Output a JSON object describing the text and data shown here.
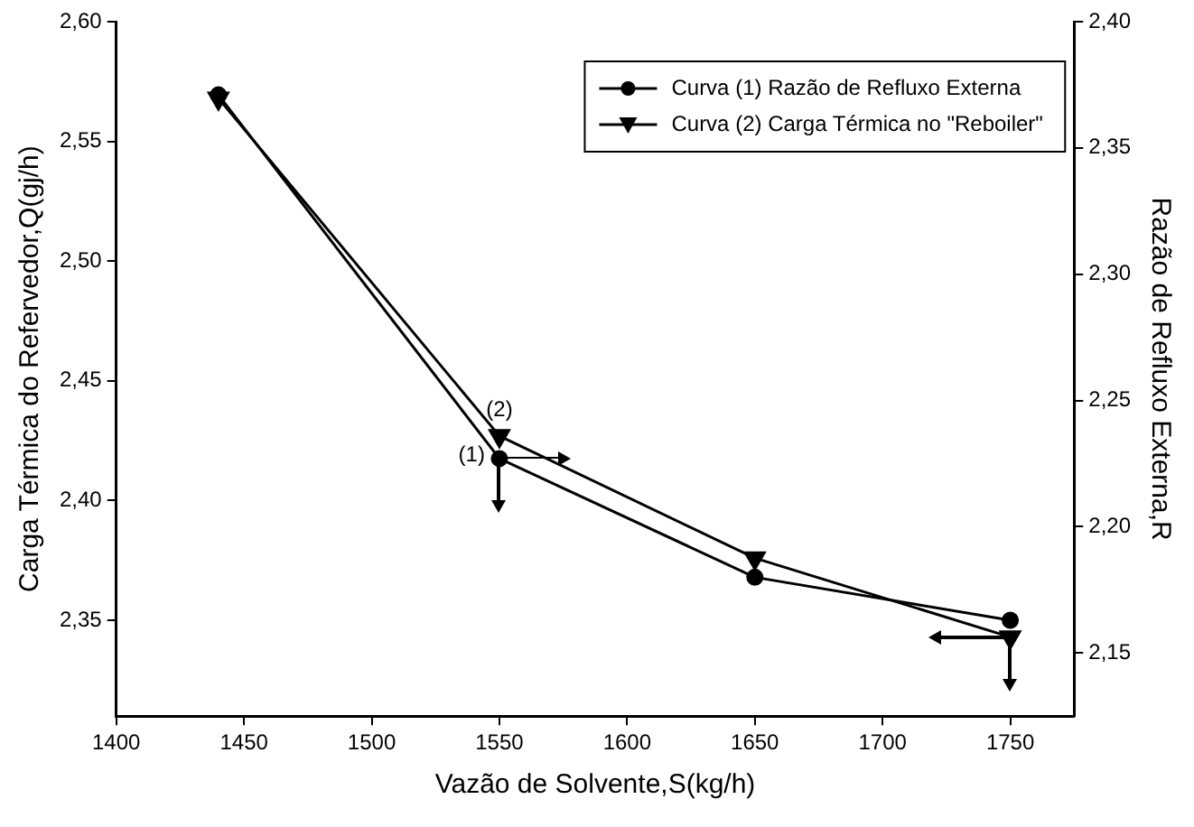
{
  "chart_data": {
    "type": "line",
    "xlabel": "Vazão de Solvente,S(kg/h)",
    "ylabel": "Carga Térmica do Refervedor,Q(gj/h)",
    "y2label": "Razão de Refluxo Externa,R",
    "x": [
      1440,
      1550,
      1650,
      1750
    ],
    "series": [
      {
        "name": "Curva (1) Razão de Refluxo Externa",
        "color": "#000000",
        "values": [
          2.371,
          2.227,
          2.18,
          2.163
        ],
        "axis": "y2",
        "marker": "circle"
      },
      {
        "name": "Curva (2) Carga Térmica no \"Reboiler\"",
        "color": "#000000",
        "values": [
          2.568,
          2.427,
          2.376,
          2.343
        ],
        "marker": "triangle"
      }
    ],
    "xlim": [
      1400,
      1775
    ],
    "xticks": [
      1400,
      1450,
      1500,
      1550,
      1600,
      1650,
      1700,
      1750
    ],
    "ylim": [
      2.31,
      2.6
    ],
    "yticks": [
      {
        "value": 2.35,
        "label": "2,35"
      },
      {
        "value": 2.4,
        "label": "2,40"
      },
      {
        "value": 2.45,
        "label": "2,45"
      },
      {
        "value": 2.5,
        "label": "2,50"
      },
      {
        "value": 2.55,
        "label": "2,55"
      },
      {
        "value": 2.6,
        "label": "2,60"
      }
    ],
    "y2lim": [
      2.125,
      2.4
    ],
    "y2ticks": [
      {
        "value": 2.15,
        "label": "2,15"
      },
      {
        "value": 2.2,
        "label": "2,20"
      },
      {
        "value": 2.25,
        "label": "2,25"
      },
      {
        "value": 2.3,
        "label": "2,30"
      },
      {
        "value": 2.35,
        "label": "2,35"
      },
      {
        "value": 2.4,
        "label": "2,40"
      }
    ],
    "annotations": [
      {
        "text": "(1)",
        "x": 1550,
        "y": 2.419
      },
      {
        "text": "(2)",
        "x": 1550,
        "y": 2.427
      }
    ],
    "legend": "top right",
    "grid": false,
    "line_style": "solid"
  }
}
